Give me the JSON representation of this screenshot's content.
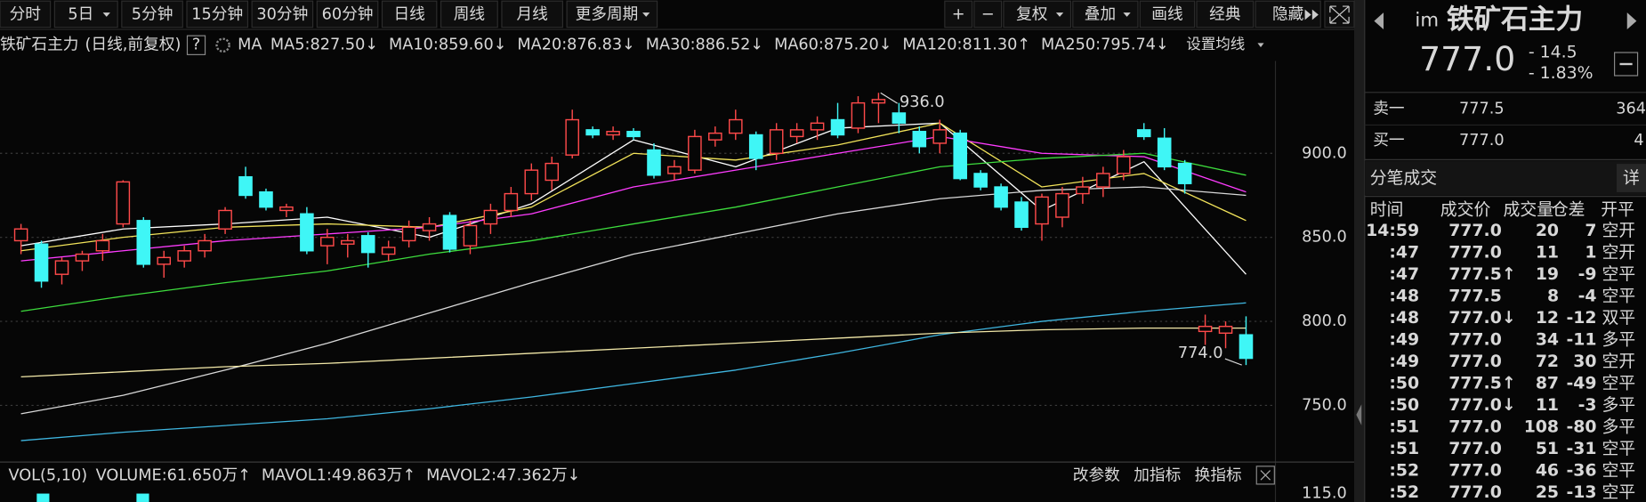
{
  "toolbar": {
    "left": [
      "分时",
      "5日",
      "5分钟",
      "15分钟",
      "30分钟",
      "60分钟",
      "日线",
      "周线",
      "月线",
      "更多周期"
    ],
    "right": [
      "+",
      "−",
      "复权",
      "叠加",
      "画线",
      "经典",
      "隐藏"
    ]
  },
  "header": {
    "name": "铁矿石主力",
    "period": "(日线,前复权)",
    "help": "?",
    "ma": "MA",
    "settings": "设置均线"
  },
  "chart_data": {
    "type": "candlestick",
    "ylim": [
      720,
      950
    ],
    "yticks": [
      {
        "value": 750,
        "label": "750.0"
      },
      {
        "value": 800,
        "label": "800.0"
      },
      {
        "value": 850,
        "label": "850.0"
      },
      {
        "value": 900,
        "label": "900.0"
      }
    ],
    "grid": true,
    "up_color": "#ff4a4a",
    "down_color": "#3ff6f6",
    "candles": [
      {
        "open": 848,
        "high": 858,
        "low": 840,
        "close": 855
      },
      {
        "open": 846,
        "high": 848,
        "low": 820,
        "close": 824
      },
      {
        "open": 828,
        "high": 838,
        "low": 822,
        "close": 836
      },
      {
        "open": 836,
        "high": 842,
        "low": 830,
        "close": 840
      },
      {
        "open": 842,
        "high": 852,
        "low": 836,
        "close": 848
      },
      {
        "open": 858,
        "high": 884,
        "low": 856,
        "close": 883
      },
      {
        "open": 860,
        "high": 862,
        "low": 832,
        "close": 834
      },
      {
        "open": 834,
        "high": 842,
        "low": 826,
        "close": 838
      },
      {
        "open": 836,
        "high": 845,
        "low": 832,
        "close": 842
      },
      {
        "open": 842,
        "high": 852,
        "low": 838,
        "close": 848
      },
      {
        "open": 855,
        "high": 868,
        "low": 852,
        "close": 866
      },
      {
        "open": 886,
        "high": 892,
        "low": 873,
        "close": 875
      },
      {
        "open": 877,
        "high": 879,
        "low": 866,
        "close": 868
      },
      {
        "open": 866,
        "high": 870,
        "low": 862,
        "close": 868
      },
      {
        "open": 864,
        "high": 868,
        "low": 840,
        "close": 842
      },
      {
        "open": 845,
        "high": 855,
        "low": 834,
        "close": 850
      },
      {
        "open": 846,
        "high": 852,
        "low": 838,
        "close": 848
      },
      {
        "open": 851,
        "high": 853,
        "low": 832,
        "close": 841
      },
      {
        "open": 840,
        "high": 848,
        "low": 836,
        "close": 844
      },
      {
        "open": 848,
        "high": 860,
        "low": 844,
        "close": 856
      },
      {
        "open": 854,
        "high": 862,
        "low": 848,
        "close": 858
      },
      {
        "open": 863,
        "high": 865,
        "low": 841,
        "close": 843
      },
      {
        "open": 845,
        "high": 860,
        "low": 840,
        "close": 857
      },
      {
        "open": 858,
        "high": 870,
        "low": 852,
        "close": 866
      },
      {
        "open": 866,
        "high": 880,
        "low": 862,
        "close": 876
      },
      {
        "open": 876,
        "high": 894,
        "low": 872,
        "close": 890
      },
      {
        "open": 884,
        "high": 898,
        "low": 878,
        "close": 894
      },
      {
        "open": 899,
        "high": 926,
        "low": 897,
        "close": 920
      },
      {
        "open": 914,
        "high": 916,
        "low": 909,
        "close": 911
      },
      {
        "open": 911,
        "high": 916,
        "low": 908,
        "close": 913
      },
      {
        "open": 913,
        "high": 915,
        "low": 908,
        "close": 910
      },
      {
        "open": 902,
        "high": 906,
        "low": 885,
        "close": 887
      },
      {
        "open": 888,
        "high": 896,
        "low": 884,
        "close": 892
      },
      {
        "open": 890,
        "high": 914,
        "low": 888,
        "close": 910
      },
      {
        "open": 908,
        "high": 916,
        "low": 904,
        "close": 912
      },
      {
        "open": 912,
        "high": 926,
        "low": 908,
        "close": 920
      },
      {
        "open": 911,
        "high": 913,
        "low": 890,
        "close": 897
      },
      {
        "open": 900,
        "high": 918,
        "low": 896,
        "close": 914
      },
      {
        "open": 910,
        "high": 918,
        "low": 906,
        "close": 914
      },
      {
        "open": 914,
        "high": 922,
        "low": 908,
        "close": 918
      },
      {
        "open": 920,
        "high": 930,
        "low": 909,
        "close": 911
      },
      {
        "open": 915,
        "high": 934,
        "low": 912,
        "close": 930
      },
      {
        "open": 930,
        "high": 936,
        "low": 918,
        "close": 932
      },
      {
        "open": 924,
        "high": 930,
        "low": 912,
        "close": 918
      },
      {
        "open": 913,
        "high": 916,
        "low": 900,
        "close": 904
      },
      {
        "open": 906,
        "high": 920,
        "low": 900,
        "close": 914
      },
      {
        "open": 912,
        "high": 914,
        "low": 884,
        "close": 885
      },
      {
        "open": 888,
        "high": 890,
        "low": 878,
        "close": 880
      },
      {
        "open": 880,
        "high": 882,
        "low": 866,
        "close": 868
      },
      {
        "open": 871,
        "high": 874,
        "low": 854,
        "close": 856
      },
      {
        "open": 858,
        "high": 876,
        "low": 848,
        "close": 874
      },
      {
        "open": 862,
        "high": 880,
        "low": 856,
        "close": 876
      },
      {
        "open": 876,
        "high": 886,
        "low": 870,
        "close": 880
      },
      {
        "open": 880,
        "high": 892,
        "low": 874,
        "close": 888
      },
      {
        "open": 888,
        "high": 902,
        "low": 884,
        "close": 898
      },
      {
        "open": 914,
        "high": 918,
        "low": 908,
        "close": 910
      },
      {
        "open": 909,
        "high": 915,
        "low": 890,
        "close": 892
      },
      {
        "open": 894,
        "high": 896,
        "low": 876,
        "close": 882
      },
      {
        "open": 794,
        "high": 804,
        "low": 786,
        "close": 797
      },
      {
        "open": 793,
        "high": 800,
        "low": 784,
        "close": 797
      },
      {
        "open": 792,
        "high": 803,
        "low": 774,
        "close": 778
      }
    ],
    "annotations": [
      {
        "value": 936,
        "label": "936.0"
      },
      {
        "value": 774,
        "label": "774.0"
      }
    ],
    "x": [
      0,
      5,
      10,
      15,
      20,
      25,
      30,
      35,
      40,
      45,
      50,
      55,
      60
    ],
    "series": [
      {
        "name": "MA5:827.50↓",
        "color": "#ffffff",
        "values": [
          845,
          855,
          858,
          862,
          850,
          870,
          908,
          892,
          915,
          918,
          866,
          895,
          828
        ]
      },
      {
        "name": "MA10:859.60↓",
        "color": "#f2e35a",
        "values": [
          842,
          850,
          856,
          858,
          856,
          868,
          900,
          896,
          905,
          918,
          880,
          888,
          860
        ]
      },
      {
        "name": "MA20:876.83↓",
        "color": "#ff3cff",
        "values": [
          836,
          842,
          848,
          852,
          856,
          864,
          880,
          890,
          900,
          910,
          900,
          898,
          877
        ]
      },
      {
        "name": "MA30:886.52↓",
        "color": "#3ddc3d",
        "values": [
          806,
          815,
          823,
          830,
          840,
          848,
          858,
          868,
          880,
          892,
          897,
          900,
          887
        ]
      },
      {
        "name": "MA60:875.20↓",
        "color": "#d8d8d8",
        "values": [
          745,
          756,
          771,
          787,
          805,
          823,
          840,
          852,
          864,
          873,
          878,
          880,
          875
        ]
      },
      {
        "name": "MA120:811.30↑",
        "color": "#3fb6e0",
        "values": [
          729,
          734,
          738,
          742,
          748,
          755,
          763,
          771,
          781,
          792,
          800,
          806,
          811
        ]
      },
      {
        "name": "MA250:795.74↓",
        "color": "#f2e8a8",
        "values": [
          767,
          770,
          773,
          775,
          778,
          781,
          784,
          787,
          790,
          793,
          795,
          796,
          796
        ]
      }
    ]
  },
  "volume_panel": {
    "label": "VOL(5,10)",
    "items": [
      {
        "text": "VOLUME:61.650万↑",
        "color": "#ffffff"
      },
      {
        "text": "MAVOL1:49.863万↑",
        "color": "#f2e35a"
      },
      {
        "text": "MAVOL2:47.362万↓",
        "color": "#ff3cff"
      }
    ],
    "buttons": [
      "改参数",
      "加指标",
      "换指标"
    ],
    "axis_label": "115.0"
  },
  "quote": {
    "exchange": "im",
    "name": "铁矿石主力",
    "price": "777.0",
    "change": "- 14.5",
    "change_pct": "- 1.83%",
    "ask_label": "卖一",
    "ask_price": "777.5",
    "ask_volume": "364",
    "bid_label": "买一",
    "bid_price": "777.0",
    "bid_volume": "4"
  },
  "trades": {
    "title": "分笔成交",
    "detail": "详",
    "columns": [
      "时间",
      "成交价",
      "成交量",
      "仓差",
      "开平"
    ],
    "rows": [
      {
        "time": "14:59",
        "price": "777.0",
        "volume": "20",
        "diff": "7",
        "type": "空开",
        "color": "#3ddc5a"
      },
      {
        "time": ":47",
        "price": "777.0",
        "volume": "11",
        "diff": "1",
        "type": "空开",
        "color": "#3ddc5a"
      },
      {
        "time": ":47",
        "price": "777.5",
        "arrow": "↑",
        "volume": "19",
        "diff": "-9",
        "type": "空平",
        "color": "#ff4a4a"
      },
      {
        "time": ":48",
        "price": "777.5",
        "volume": "8",
        "diff": "-4",
        "type": "空平",
        "color": "#ff4a4a"
      },
      {
        "time": ":48",
        "price": "777.0",
        "arrow": "↓",
        "volume": "12",
        "diff": "-12",
        "type": "双平",
        "color": "#3ddc5a"
      },
      {
        "time": ":49",
        "price": "777.0",
        "volume": "34",
        "diff": "-11",
        "type": "多平",
        "color": "#3ddc5a"
      },
      {
        "time": ":49",
        "price": "777.0",
        "volume": "72",
        "diff": "30",
        "type": "空开",
        "color": "#3ddc5a"
      },
      {
        "time": ":50",
        "price": "777.5",
        "arrow": "↑",
        "volume": "87",
        "diff": "-49",
        "type": "空平",
        "color": "#ff4a4a"
      },
      {
        "time": ":50",
        "price": "777.0",
        "arrow": "↓",
        "volume": "11",
        "diff": "-3",
        "type": "多平",
        "color": "#3ddc5a"
      },
      {
        "time": ":51",
        "price": "777.0",
        "volume": "108",
        "diff": "-80",
        "type": "多平",
        "color": "#3ddc5a"
      },
      {
        "time": ":51",
        "price": "777.0",
        "volume": "51",
        "diff": "-31",
        "type": "空平",
        "color": "#ff4a4a"
      },
      {
        "time": ":52",
        "price": "777.0",
        "volume": "46",
        "diff": "-36",
        "type": "空平",
        "color": "#ff4a4a"
      },
      {
        "time": ":52",
        "price": "777.0",
        "volume": "25",
        "diff": "-13",
        "type": "空平",
        "color": "#ff4a4a"
      }
    ]
  }
}
